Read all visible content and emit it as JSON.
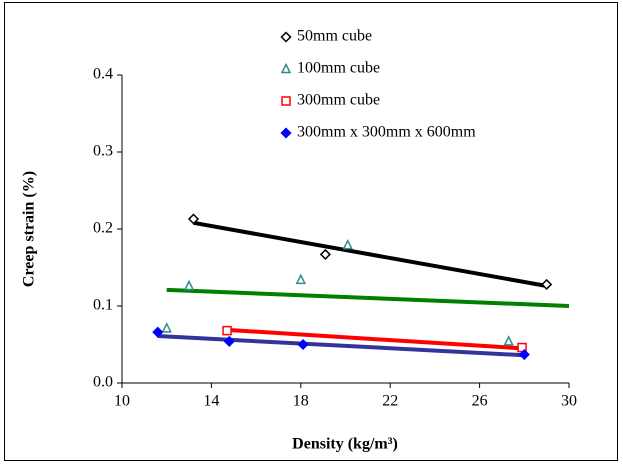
{
  "chart_data": {
    "type": "scatter",
    "xlabel": "Density (kg/m³)",
    "ylabel": "Creep strain (%)",
    "xlim": [
      10,
      30
    ],
    "xticks": [
      10,
      14,
      18,
      22,
      26,
      30
    ],
    "ylim": [
      0,
      0.4
    ],
    "yticks": [
      {
        "value": 0,
        "label": "0.0"
      },
      0.1,
      0.2,
      0.3,
      0.4
    ],
    "legend": "top",
    "series": [
      {
        "name": "50mm cube",
        "color": "#000000",
        "marker": "diamond",
        "filled": false,
        "x": [
          13.2,
          19.1,
          29.0
        ],
        "values": [
          0.213,
          0.167,
          0.128
        ]
      },
      {
        "name": "100mm cube",
        "color": "#2e8b8b",
        "marker": "triangle",
        "filled": false,
        "x": [
          12.0,
          13.0,
          18.0,
          20.1,
          27.3
        ],
        "values": [
          0.071,
          0.126,
          0.134,
          0.179,
          0.054
        ]
      },
      {
        "name": "300mm cube",
        "color": "#ff0000",
        "marker": "square",
        "filled": false,
        "x": [
          14.7,
          27.9
        ],
        "values": [
          0.068,
          0.046
        ]
      },
      {
        "name": "300mm x 300mm x 600mm",
        "color": "#0000ff",
        "marker": "diamond",
        "filled": true,
        "x": [
          11.6,
          14.8,
          18.1,
          28.0
        ],
        "values": [
          0.066,
          0.054,
          0.05,
          0.037
        ]
      }
    ],
    "trendlines": [
      {
        "color": "#000000",
        "x": [
          13.2,
          29.0
        ],
        "values": [
          0.208,
          0.126
        ]
      },
      {
        "color": "#008000",
        "x": [
          12.0,
          30.0
        ],
        "values": [
          0.121,
          0.1
        ]
      },
      {
        "color": "#ff0000",
        "x": [
          14.7,
          27.9
        ],
        "values": [
          0.069,
          0.045
        ]
      },
      {
        "color": "#333399",
        "x": [
          11.6,
          28.0
        ],
        "values": [
          0.061,
          0.036
        ]
      }
    ]
  }
}
